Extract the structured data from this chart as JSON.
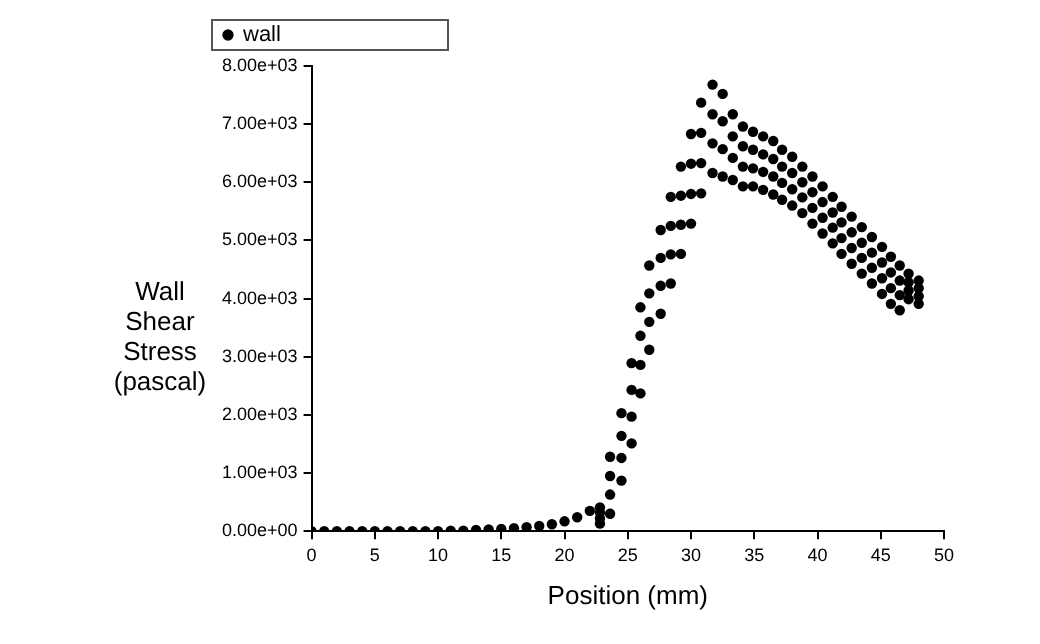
{
  "chart_data": {
    "type": "scatter",
    "xlabel": "Position (mm)",
    "ylabel": "Wall Shear Stress (pascal)",
    "legend": "top left",
    "marker": "circle",
    "grid": false,
    "xlim": [
      0,
      50
    ],
    "xticks": [
      0,
      5,
      10,
      15,
      20,
      25,
      30,
      35,
      40,
      45,
      50
    ],
    "ylim": [
      0,
      8000
    ],
    "yticks": [
      {
        "value": 0,
        "label": "0.00e+00"
      },
      {
        "value": 1000,
        "label": "1.00e+03"
      },
      {
        "value": 2000,
        "label": "2.00e+03"
      },
      {
        "value": 3000,
        "label": "3.00e+03"
      },
      {
        "value": 4000,
        "label": "4.00e+03"
      },
      {
        "value": 5000,
        "label": "5.00e+03"
      },
      {
        "value": 6000,
        "label": "6.00e+03"
      },
      {
        "value": 7000,
        "label": "7.00e+03"
      },
      {
        "value": 8000,
        "label": "8.00e+03"
      }
    ],
    "series": [
      {
        "name": "wall",
        "color": "#000000",
        "x": [
          0,
          1,
          2,
          3,
          4,
          5,
          6,
          7,
          8,
          9,
          10,
          11,
          12,
          13,
          14,
          15,
          16,
          17,
          18,
          19,
          20,
          21,
          22,
          22.8,
          22.8,
          22.8,
          22.8,
          23.6,
          23.6,
          23.6,
          23.6,
          24.5,
          24.5,
          24.5,
          24.5,
          25.3,
          25.3,
          25.3,
          25.3,
          26.0,
          26.0,
          26.0,
          26.0,
          26.7,
          26.7,
          26.7,
          26.7,
          27.6,
          27.6,
          27.6,
          27.6,
          28.4,
          28.4,
          28.4,
          28.4,
          29.2,
          29.2,
          29.2,
          29.2,
          30.0,
          30.0,
          30.0,
          30.0,
          30.8,
          30.8,
          30.8,
          30.8,
          31.7,
          31.7,
          31.7,
          31.7,
          32.5,
          32.5,
          32.5,
          32.5,
          33.3,
          33.3,
          33.3,
          33.3,
          34.1,
          34.1,
          34.1,
          34.1,
          34.9,
          34.9,
          34.9,
          34.9,
          35.7,
          35.7,
          35.7,
          35.7,
          36.5,
          36.5,
          36.5,
          36.5,
          37.2,
          37.2,
          37.2,
          37.2,
          38.0,
          38.0,
          38.0,
          38.0,
          38.8,
          38.8,
          38.8,
          38.8,
          39.6,
          39.6,
          39.6,
          39.6,
          40.4,
          40.4,
          40.4,
          40.4,
          41.2,
          41.2,
          41.2,
          41.2,
          41.9,
          41.9,
          41.9,
          41.9,
          42.7,
          42.7,
          42.7,
          42.7,
          43.5,
          43.5,
          43.5,
          43.5,
          44.3,
          44.3,
          44.3,
          44.3,
          45.1,
          45.1,
          45.1,
          45.1,
          45.8,
          45.8,
          45.8,
          45.8,
          46.5,
          46.5,
          46.5,
          46.5,
          47.2,
          47.2,
          47.2,
          47.2,
          48.0,
          48.0,
          48.0,
          48.0
        ],
        "values": [
          0,
          0,
          0,
          0,
          0,
          0,
          0,
          0,
          0,
          0,
          0,
          10,
          10,
          20,
          30,
          40,
          50,
          70,
          90,
          120,
          170,
          240,
          350,
          130,
          220,
          320,
          410,
          300,
          630,
          950,
          1280,
          870,
          1260,
          1640,
          2030,
          1510,
          1970,
          2430,
          2890,
          2370,
          2860,
          3360,
          3850,
          3120,
          3600,
          4090,
          4570,
          3740,
          4220,
          4700,
          5180,
          4260,
          4760,
          5250,
          5750,
          4770,
          5270,
          5770,
          6270,
          5290,
          5800,
          6320,
          6830,
          5810,
          6330,
          6850,
          7370,
          6160,
          6670,
          7170,
          7680,
          6100,
          6570,
          7050,
          7520,
          6040,
          6420,
          6790,
          7170,
          5930,
          6270,
          6620,
          6960,
          5930,
          6240,
          6560,
          6870,
          5870,
          6180,
          6480,
          6790,
          5790,
          6100,
          6400,
          6710,
          5700,
          5990,
          6270,
          6560,
          5600,
          5880,
          6160,
          6440,
          5470,
          5740,
          6000,
          6270,
          5290,
          5560,
          5830,
          6100,
          5120,
          5390,
          5660,
          5930,
          4950,
          5220,
          5480,
          5750,
          4770,
          5040,
          5310,
          5580,
          4600,
          4870,
          5140,
          5410,
          4430,
          4700,
          4960,
          5230,
          4260,
          4530,
          4790,
          5060,
          4080,
          4350,
          4620,
          4890,
          3910,
          4180,
          4450,
          4720,
          3800,
          4060,
          4310,
          4570,
          3990,
          4140,
          4280,
          4430,
          3910,
          4040,
          4180,
          4310
        ]
      }
    ]
  }
}
